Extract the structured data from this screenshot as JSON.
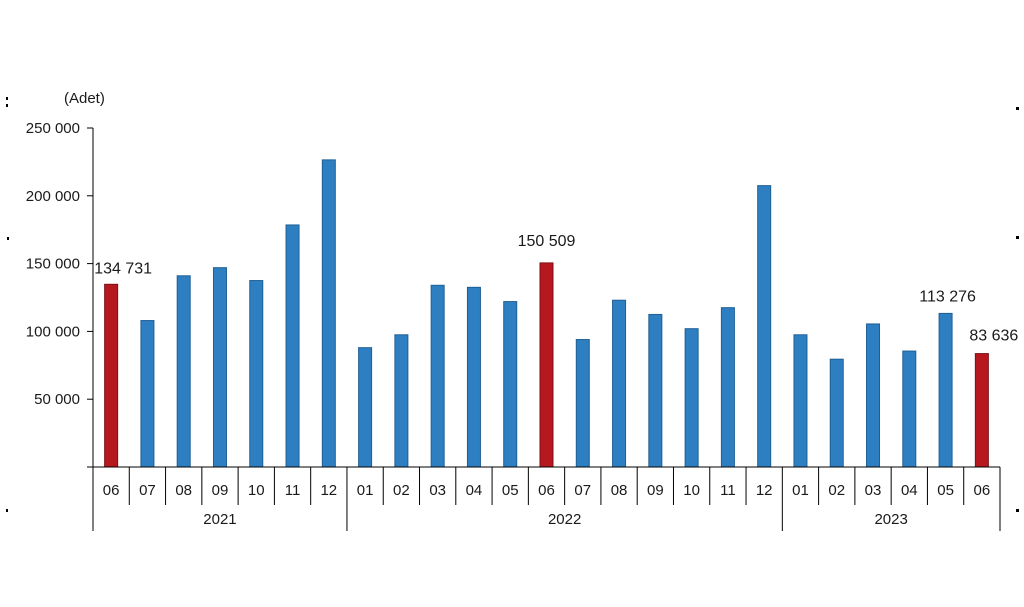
{
  "chart_data": {
    "type": "bar",
    "unit_label": "(Adet)",
    "ylim": [
      0,
      250000
    ],
    "yticks": [
      0,
      50000,
      100000,
      150000,
      200000,
      250000
    ],
    "ytick_labels": [
      "",
      "50 000",
      "100 000",
      "150 000",
      "200 000",
      "250 000"
    ],
    "categories": [
      "06",
      "07",
      "08",
      "09",
      "10",
      "11",
      "12",
      "01",
      "02",
      "03",
      "04",
      "05",
      "06",
      "07",
      "08",
      "09",
      "10",
      "11",
      "12",
      "01",
      "02",
      "03",
      "04",
      "05",
      "06"
    ],
    "years": [
      {
        "label": "2021",
        "count": 7
      },
      {
        "label": "2022",
        "count": 12
      },
      {
        "label": "2023",
        "count": 6
      }
    ],
    "values": [
      134731,
      108000,
      141000,
      147000,
      137500,
      178500,
      226500,
      88000,
      97500,
      134000,
      132500,
      122000,
      150509,
      94000,
      123000,
      112500,
      102000,
      117500,
      207500,
      97500,
      79500,
      105500,
      85500,
      113276,
      83636
    ],
    "highlight_indices": [
      0,
      12,
      24
    ],
    "data_labels": [
      {
        "index": 0,
        "text": "134 731"
      },
      {
        "index": 12,
        "text": "150 509"
      },
      {
        "index": 23,
        "text": "113 276"
      },
      {
        "index": 24,
        "text": "83 636"
      }
    ],
    "colors": {
      "bar": "#2e7fc2",
      "bar_stroke": "#1f5f94",
      "highlight": "#b5191f",
      "highlight_stroke": "#7d1014"
    },
    "grid": false,
    "legend": "none"
  }
}
